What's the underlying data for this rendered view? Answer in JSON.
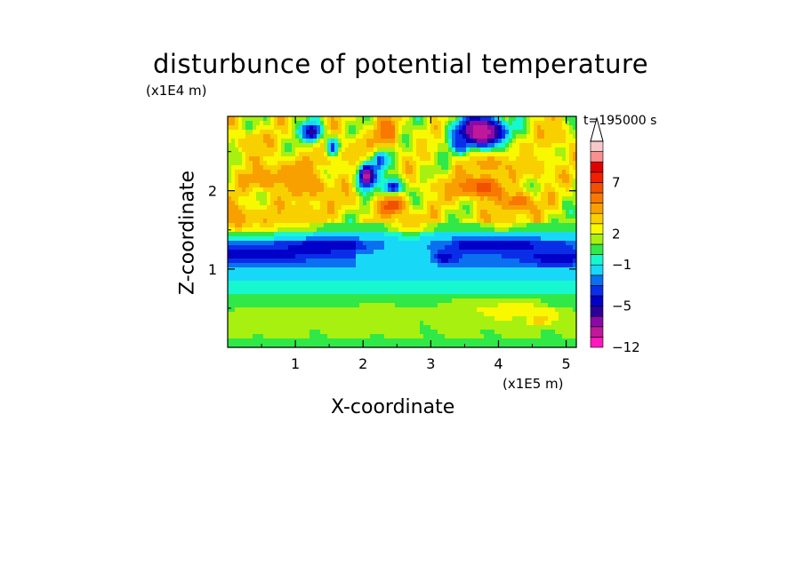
{
  "chart_data": {
    "type": "heatmap",
    "title": "disturbunce of potential temperature",
    "xlabel": "X-coordinate",
    "ylabel": "Z-coordinate",
    "x_unit_label": "(x1E5 m)",
    "y_unit_label": "(x1E4 m)",
    "time_label": "t=195000 s",
    "xlim": [
      0,
      5.15
    ],
    "ylim": [
      0,
      2.95
    ],
    "x_ticks": [
      {
        "value": 1,
        "label": "1"
      },
      {
        "value": 2,
        "label": "2"
      },
      {
        "value": 3,
        "label": "3"
      },
      {
        "value": 4,
        "label": "4"
      },
      {
        "value": 5,
        "label": "5"
      }
    ],
    "y_ticks": [
      {
        "value": 1,
        "label": "1"
      },
      {
        "value": 2,
        "label": "2"
      }
    ],
    "grid": false,
    "colorbar": {
      "placement": "right",
      "levels": [
        -12,
        -10,
        -8,
        -6,
        -5,
        -4,
        -3,
        -2,
        -1,
        0,
        1,
        2,
        3,
        4,
        5,
        6,
        7,
        8,
        9,
        10
      ],
      "colors": [
        "#ff18c0",
        "#c0189a",
        "#8a0aa8",
        "#2a0098",
        "#0000c8",
        "#0a2ee8",
        "#0a70f0",
        "#18d8f8",
        "#18f8d0",
        "#30e848",
        "#a8f010",
        "#f8f800",
        "#f8d000",
        "#f8a000",
        "#f87800",
        "#f05000",
        "#f02000",
        "#e00000",
        "#f89090",
        "#f8c8c8"
      ],
      "tick_labels": [
        {
          "value": 7,
          "label": "7"
        },
        {
          "value": 2,
          "label": "2"
        },
        {
          "value": -1,
          "label": "−1"
        },
        {
          "value": -5,
          "label": "−5"
        },
        {
          "value": -12,
          "label": "−12"
        }
      ],
      "extends_max": true
    },
    "features": [
      {
        "x": 0.15,
        "z": 1.65,
        "value": 5,
        "sx": 0.18,
        "sz": 0.14
      },
      {
        "x": 0.55,
        "z": 2.15,
        "value": 5,
        "sx": 0.22,
        "sz": 0.12
      },
      {
        "x": 0.95,
        "z": 2.25,
        "value": 5,
        "sx": 0.2,
        "sz": 0.12
      },
      {
        "x": 1.25,
        "z": 2.05,
        "value": 5,
        "sx": 0.2,
        "sz": 0.14
      },
      {
        "x": 0.6,
        "z": 1.65,
        "value": 4,
        "sx": 0.2,
        "sz": 0.12
      },
      {
        "x": 1.1,
        "z": 1.7,
        "value": 4,
        "sx": 0.2,
        "sz": 0.12
      },
      {
        "x": 1.55,
        "z": 2.45,
        "value": 4,
        "sx": 0.22,
        "sz": 0.12
      },
      {
        "x": 0.35,
        "z": 2.6,
        "value": 4,
        "sx": 0.2,
        "sz": 0.12
      },
      {
        "x": 1.7,
        "z": 1.9,
        "value": 4,
        "sx": 0.2,
        "sz": 0.1
      },
      {
        "x": 1.25,
        "z": 2.75,
        "value": -6,
        "sx": 0.1,
        "sz": 0.09
      },
      {
        "x": 1.55,
        "z": 2.55,
        "value": -4,
        "sx": 0.07,
        "sz": 0.08
      },
      {
        "x": 2.05,
        "z": 2.2,
        "value": -9,
        "sx": 0.09,
        "sz": 0.12
      },
      {
        "x": 2.25,
        "z": 2.4,
        "value": -4,
        "sx": 0.08,
        "sz": 0.1
      },
      {
        "x": 2.45,
        "z": 2.05,
        "value": -5,
        "sx": 0.1,
        "sz": 0.08
      },
      {
        "x": 2.45,
        "z": 1.8,
        "value": 7,
        "sx": 0.14,
        "sz": 0.09
      },
      {
        "x": 2.35,
        "z": 2.75,
        "value": 6,
        "sx": 0.13,
        "sz": 0.14
      },
      {
        "x": 1.95,
        "z": 2.55,
        "value": 4,
        "sx": 0.13,
        "sz": 0.12
      },
      {
        "x": 2.7,
        "z": 1.6,
        "value": 4,
        "sx": 0.2,
        "sz": 0.1
      },
      {
        "x": 2.95,
        "z": 2.55,
        "value": 3,
        "sx": 0.12,
        "sz": 0.12
      },
      {
        "x": 3.05,
        "z": 2.05,
        "value": 3,
        "sx": 0.15,
        "sz": 0.1
      },
      {
        "x": 3.75,
        "z": 2.75,
        "value": -10,
        "sx": 0.25,
        "sz": 0.15
      },
      {
        "x": 3.45,
        "z": 2.6,
        "value": -4,
        "sx": 0.08,
        "sz": 0.08
      },
      {
        "x": 3.5,
        "z": 2.05,
        "value": 5,
        "sx": 0.22,
        "sz": 0.12
      },
      {
        "x": 3.8,
        "z": 2.05,
        "value": 7,
        "sx": 0.15,
        "sz": 0.1
      },
      {
        "x": 3.9,
        "z": 2.35,
        "value": 5,
        "sx": 0.18,
        "sz": 0.1
      },
      {
        "x": 4.3,
        "z": 1.85,
        "value": 6,
        "sx": 0.18,
        "sz": 0.1
      },
      {
        "x": 4.05,
        "z": 1.65,
        "value": 4,
        "sx": 0.2,
        "sz": 0.08
      },
      {
        "x": 4.55,
        "z": 2.3,
        "value": 4,
        "sx": 0.2,
        "sz": 0.12
      },
      {
        "x": 4.85,
        "z": 2.7,
        "value": 4,
        "sx": 0.16,
        "sz": 0.12
      },
      {
        "x": 4.3,
        "z": 2.55,
        "value": 3,
        "sx": 0.14,
        "sz": 0.1
      },
      {
        "x": 0.3,
        "z": 1.2,
        "value": -5,
        "sx": 0.8,
        "sz": 0.06
      },
      {
        "x": 1.5,
        "z": 1.3,
        "value": -5,
        "sx": 0.45,
        "sz": 0.06
      },
      {
        "x": 3.2,
        "z": 1.15,
        "value": -5,
        "sx": 0.12,
        "sz": 0.06
      },
      {
        "x": 3.95,
        "z": 1.3,
        "value": -5,
        "sx": 0.55,
        "sz": 0.07
      },
      {
        "x": 4.85,
        "z": 1.15,
        "value": -5,
        "sx": 0.3,
        "sz": 0.06
      },
      {
        "x": 0.7,
        "z": 0.35,
        "value": 2,
        "sx": 0.4,
        "sz": 0.12
      },
      {
        "x": 2.2,
        "z": 0.4,
        "value": 2,
        "sx": 0.35,
        "sz": 0.12
      },
      {
        "x": 3.6,
        "z": 0.45,
        "value": 2,
        "sx": 0.4,
        "sz": 0.12
      },
      {
        "x": 4.3,
        "z": 0.5,
        "value": 3,
        "sx": 0.25,
        "sz": 0.08
      },
      {
        "x": 4.6,
        "z": 0.35,
        "value": 4,
        "sx": 0.12,
        "sz": 0.06
      }
    ]
  }
}
